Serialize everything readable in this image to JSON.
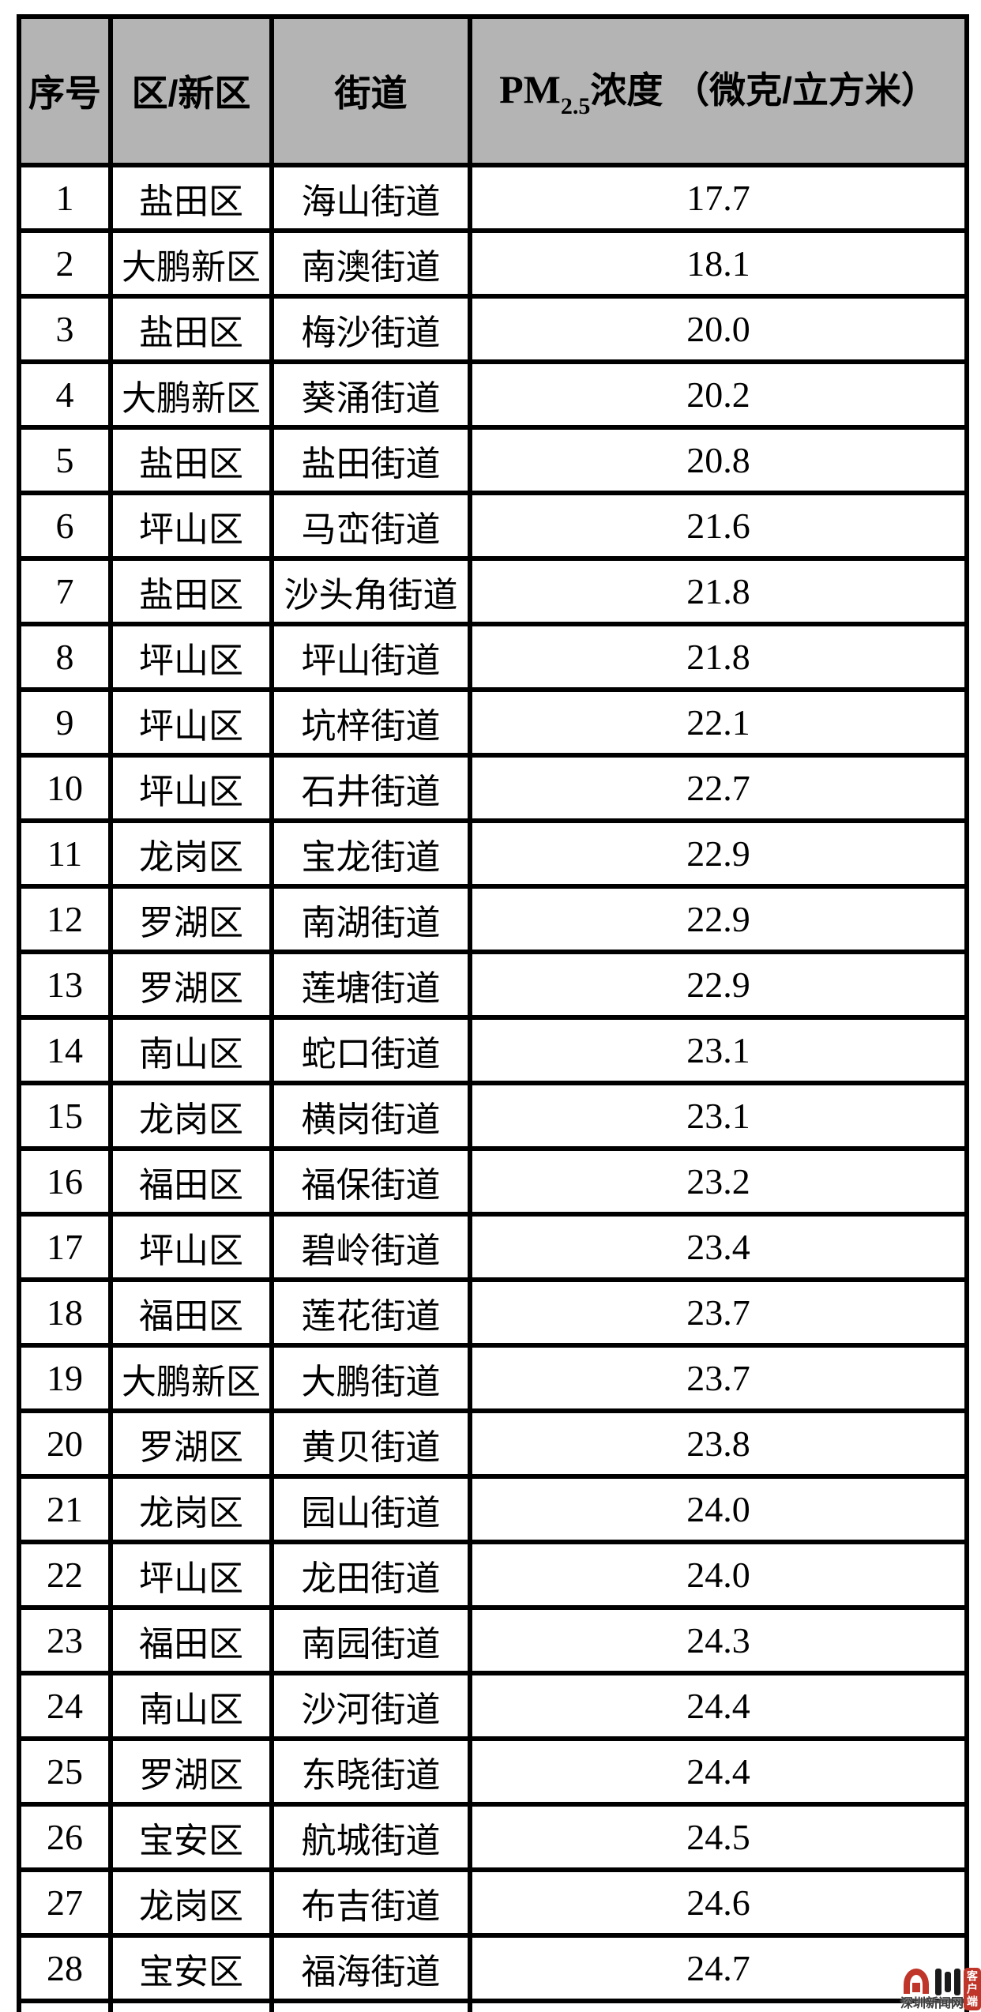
{
  "colors": {
    "header_bg": "#b4b4b4",
    "highlight_green": "#4FAE5C",
    "border": "#000000",
    "logo_red": "#bf3529",
    "logo_text_color": "#3d3d3d"
  },
  "table": {
    "headers": {
      "rank": "序号",
      "district": "区/新区",
      "street": "街道",
      "pm_prefix": "PM",
      "pm_sub": "2.5",
      "pm_suffix": "浓度 （微克/立方米）"
    },
    "rows": [
      {
        "rank": "1",
        "district": "盐田区",
        "street": "海山街道",
        "value": "17.7",
        "highlight": true
      },
      {
        "rank": "2",
        "district": "大鹏新区",
        "street": "南澳街道",
        "value": "18.1",
        "highlight": true
      },
      {
        "rank": "3",
        "district": "盐田区",
        "street": "梅沙街道",
        "value": "20.0",
        "highlight": true
      },
      {
        "rank": "4",
        "district": "大鹏新区",
        "street": "葵涌街道",
        "value": "20.2",
        "highlight": true
      },
      {
        "rank": "5",
        "district": "盐田区",
        "street": "盐田街道",
        "value": "20.8",
        "highlight": true
      },
      {
        "rank": "6",
        "district": "坪山区",
        "street": "马峦街道",
        "value": "21.6",
        "highlight": true
      },
      {
        "rank": "7",
        "district": "盐田区",
        "street": "沙头角街道",
        "value": "21.8",
        "highlight": true
      },
      {
        "rank": "8",
        "district": "坪山区",
        "street": "坪山街道",
        "value": "21.8",
        "highlight": true
      },
      {
        "rank": "9",
        "district": "坪山区",
        "street": "坑梓街道",
        "value": "22.1",
        "highlight": true
      },
      {
        "rank": "10",
        "district": "坪山区",
        "street": "石井街道",
        "value": "22.7",
        "highlight": true
      },
      {
        "rank": "11",
        "district": "龙岗区",
        "street": "宝龙街道",
        "value": "22.9",
        "highlight": false
      },
      {
        "rank": "12",
        "district": "罗湖区",
        "street": "南湖街道",
        "value": "22.9",
        "highlight": false
      },
      {
        "rank": "13",
        "district": "罗湖区",
        "street": "莲塘街道",
        "value": "22.9",
        "highlight": false
      },
      {
        "rank": "14",
        "district": "南山区",
        "street": "蛇口街道",
        "value": "23.1",
        "highlight": false
      },
      {
        "rank": "15",
        "district": "龙岗区",
        "street": "横岗街道",
        "value": "23.1",
        "highlight": false
      },
      {
        "rank": "16",
        "district": "福田区",
        "street": "福保街道",
        "value": "23.2",
        "highlight": false
      },
      {
        "rank": "17",
        "district": "坪山区",
        "street": "碧岭街道",
        "value": "23.4",
        "highlight": false
      },
      {
        "rank": "18",
        "district": "福田区",
        "street": "莲花街道",
        "value": "23.7",
        "highlight": false
      },
      {
        "rank": "19",
        "district": "大鹏新区",
        "street": "大鹏街道",
        "value": "23.7",
        "highlight": false
      },
      {
        "rank": "20",
        "district": "罗湖区",
        "street": "黄贝街道",
        "value": "23.8",
        "highlight": false
      },
      {
        "rank": "21",
        "district": "龙岗区",
        "street": "园山街道",
        "value": "24.0",
        "highlight": false
      },
      {
        "rank": "22",
        "district": "坪山区",
        "street": "龙田街道",
        "value": "24.0",
        "highlight": false
      },
      {
        "rank": "23",
        "district": "福田区",
        "street": "南园街道",
        "value": "24.3",
        "highlight": false
      },
      {
        "rank": "24",
        "district": "南山区",
        "street": "沙河街道",
        "value": "24.4",
        "highlight": false
      },
      {
        "rank": "25",
        "district": "罗湖区",
        "street": "东晓街道",
        "value": "24.4",
        "highlight": false
      },
      {
        "rank": "26",
        "district": "宝安区",
        "street": "航城街道",
        "value": "24.5",
        "highlight": false
      },
      {
        "rank": "27",
        "district": "龙岗区",
        "street": "布吉街道",
        "value": "24.6",
        "highlight": false
      },
      {
        "rank": "28",
        "district": "宝安区",
        "street": "福海街道",
        "value": "24.7",
        "highlight": false
      }
    ]
  },
  "logo": {
    "site_name": "深圳新闻网",
    "badge": "客户端"
  },
  "chart_data": {
    "type": "table",
    "title": "PM2.5浓度（微克/立方米）街道排名",
    "columns": [
      "序号",
      "区/新区",
      "街道",
      "PM2.5浓度（微克/立方米）"
    ],
    "rows": [
      [
        1,
        "盐田区",
        "海山街道",
        17.7
      ],
      [
        2,
        "大鹏新区",
        "南澳街道",
        18.1
      ],
      [
        3,
        "盐田区",
        "梅沙街道",
        20.0
      ],
      [
        4,
        "大鹏新区",
        "葵涌街道",
        20.2
      ],
      [
        5,
        "盐田区",
        "盐田街道",
        20.8
      ],
      [
        6,
        "坪山区",
        "马峦街道",
        21.6
      ],
      [
        7,
        "盐田区",
        "沙头角街道",
        21.8
      ],
      [
        8,
        "坪山区",
        "坪山街道",
        21.8
      ],
      [
        9,
        "坪山区",
        "坑梓街道",
        22.1
      ],
      [
        10,
        "坪山区",
        "石井街道",
        22.7
      ],
      [
        11,
        "龙岗区",
        "宝龙街道",
        22.9
      ],
      [
        12,
        "罗湖区",
        "南湖街道",
        22.9
      ],
      [
        13,
        "罗湖区",
        "莲塘街道",
        22.9
      ],
      [
        14,
        "南山区",
        "蛇口街道",
        23.1
      ],
      [
        15,
        "龙岗区",
        "横岗街道",
        23.1
      ],
      [
        16,
        "福田区",
        "福保街道",
        23.2
      ],
      [
        17,
        "坪山区",
        "碧岭街道",
        23.4
      ],
      [
        18,
        "福田区",
        "莲花街道",
        23.7
      ],
      [
        19,
        "大鹏新区",
        "大鹏街道",
        23.7
      ],
      [
        20,
        "罗湖区",
        "黄贝街道",
        23.8
      ],
      [
        21,
        "龙岗区",
        "园山街道",
        24.0
      ],
      [
        22,
        "坪山区",
        "龙田街道",
        24.0
      ],
      [
        23,
        "福田区",
        "南园街道",
        24.3
      ],
      [
        24,
        "南山区",
        "沙河街道",
        24.4
      ],
      [
        25,
        "罗湖区",
        "东晓街道",
        24.4
      ],
      [
        26,
        "宝安区",
        "航城街道",
        24.5
      ],
      [
        27,
        "龙岗区",
        "布吉街道",
        24.6
      ],
      [
        28,
        "宝安区",
        "福海街道",
        24.7
      ]
    ],
    "notes": "rows 1-10 street and value rendered in green (#4FAE5C); rows 11-28 in black; gray header row"
  }
}
